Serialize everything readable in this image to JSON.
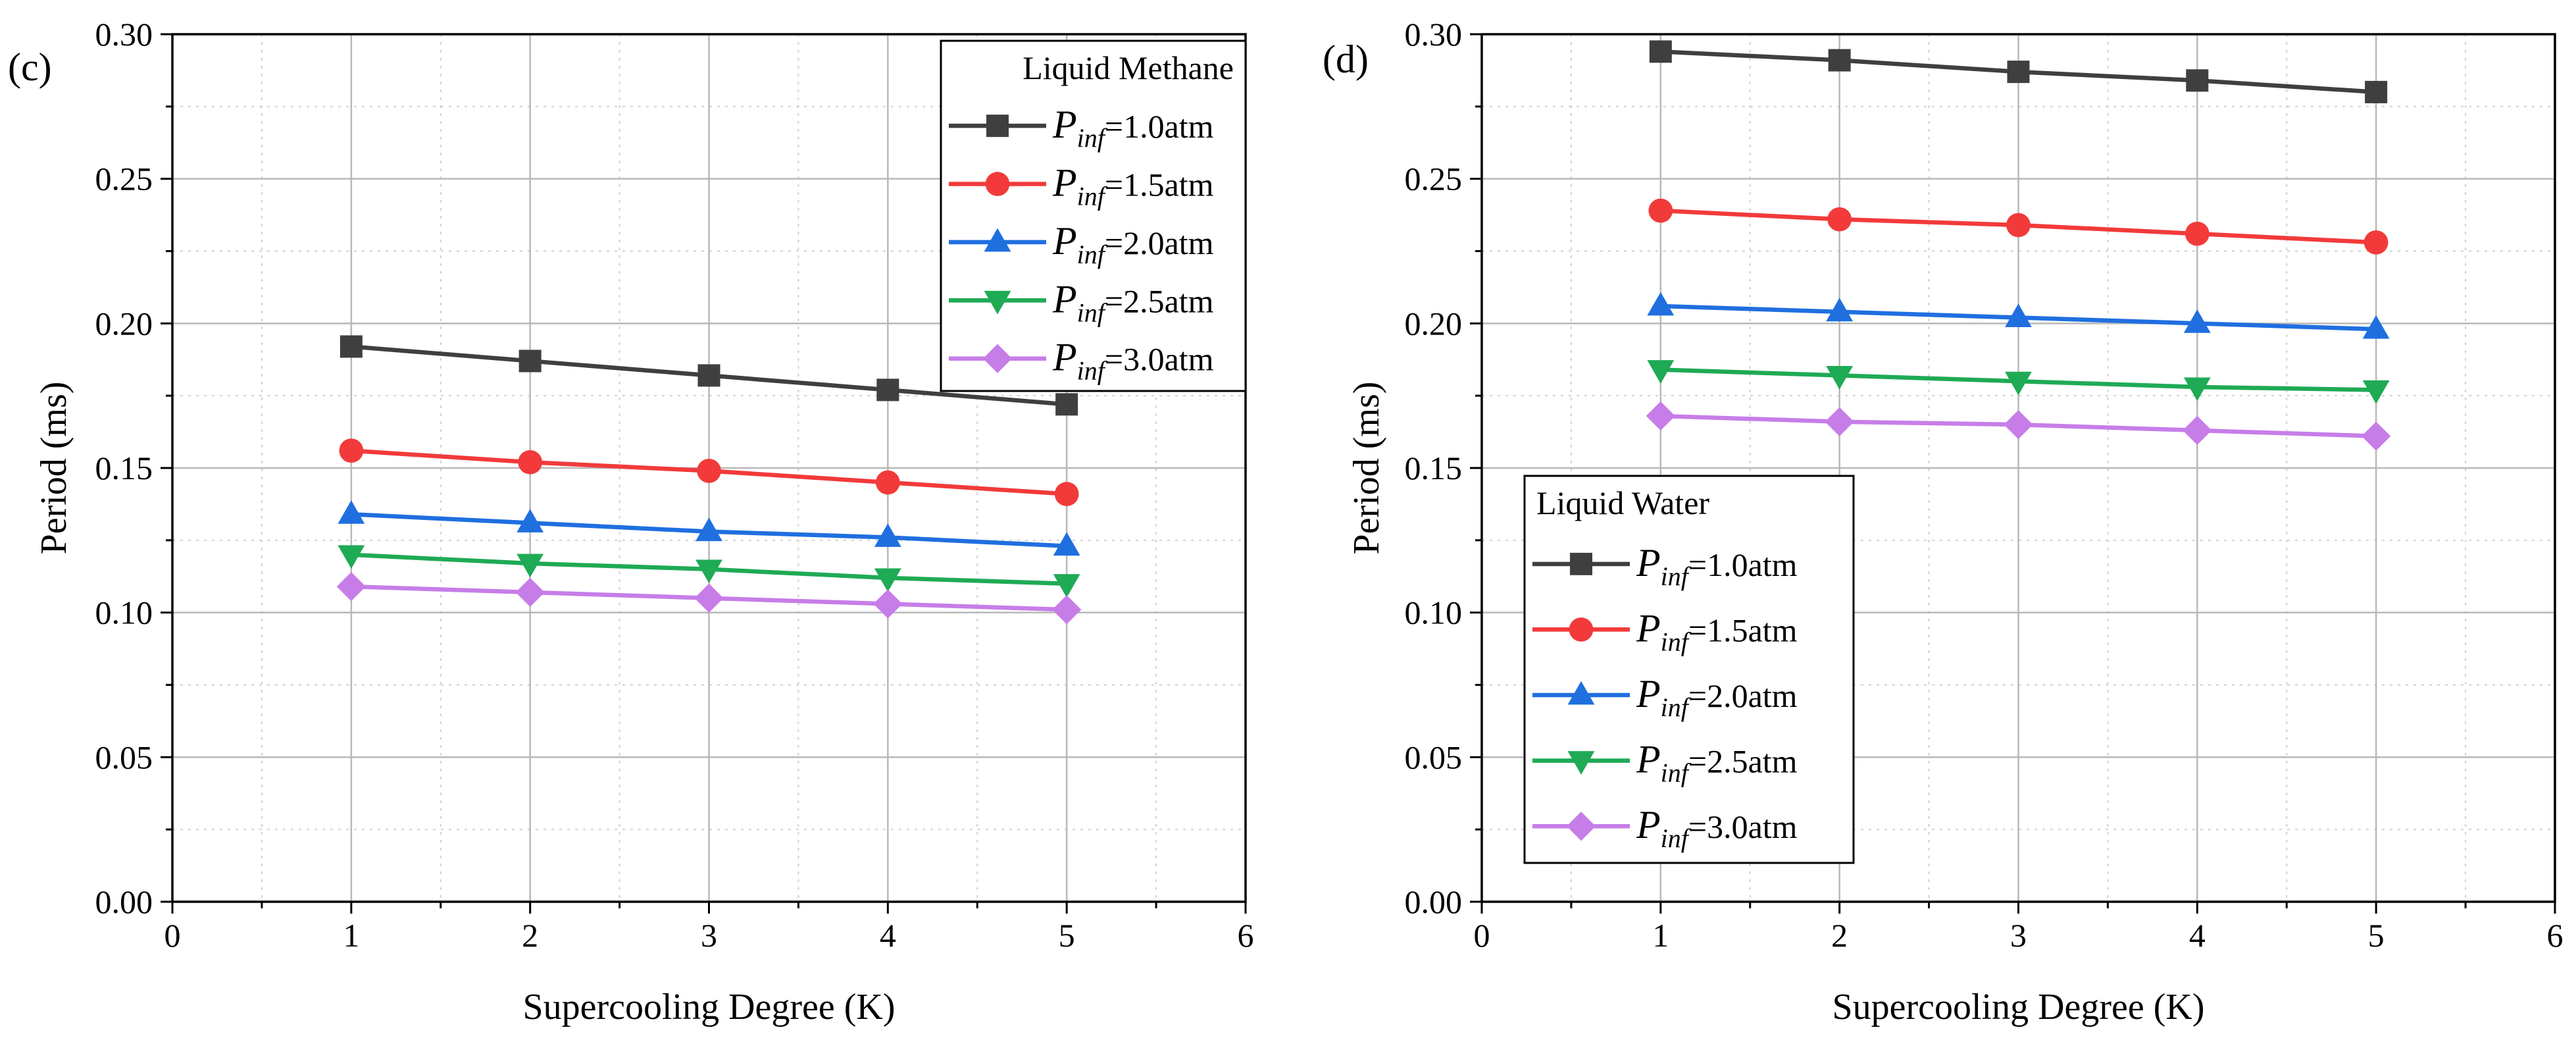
{
  "chart_data": [
    {
      "type": "line",
      "panel_label": "(c)",
      "xlabel": "Supercooling Degree (K)",
      "ylabel": "Period (ms)",
      "xlim": [
        0,
        6
      ],
      "ylim": [
        0,
        0.3
      ],
      "xticks": [
        "0",
        "1",
        "2",
        "3",
        "4",
        "5",
        "6"
      ],
      "yticks": [
        "0.00",
        "0.05",
        "0.10",
        "0.15",
        "0.20",
        "0.25",
        "0.30"
      ],
      "grid": true,
      "legend_title": "Liquid Methane",
      "legend_position": "top-right",
      "x": [
        1,
        2,
        3,
        4,
        5
      ],
      "series": [
        {
          "name": "P_inf=1.0atm",
          "symbol": "P",
          "subscript": "inf",
          "value_text": "=1.0atm",
          "marker": "square",
          "color": "#3f3f3f",
          "values": [
            0.192,
            0.187,
            0.182,
            0.177,
            0.172
          ]
        },
        {
          "name": "P_inf=1.5atm",
          "symbol": "P",
          "subscript": "inf",
          "value_text": "=1.5atm",
          "marker": "circle",
          "color": "#f23a3a",
          "values": [
            0.156,
            0.152,
            0.149,
            0.145,
            0.141
          ]
        },
        {
          "name": "P_inf=2.0atm",
          "symbol": "P",
          "subscript": "inf",
          "value_text": "=2.0atm",
          "marker": "triangle-up",
          "color": "#1f6fdf",
          "values": [
            0.134,
            0.131,
            0.128,
            0.126,
            0.123
          ]
        },
        {
          "name": "P_inf=2.5atm",
          "symbol": "P",
          "subscript": "inf",
          "value_text": "=2.5atm",
          "marker": "triangle-down",
          "color": "#1faa55",
          "values": [
            0.12,
            0.117,
            0.115,
            0.112,
            0.11
          ]
        },
        {
          "name": "P_inf=3.0atm",
          "symbol": "P",
          "subscript": "inf",
          "value_text": "=3.0atm",
          "marker": "diamond",
          "color": "#c77de8",
          "values": [
            0.109,
            0.107,
            0.105,
            0.103,
            0.101
          ]
        }
      ]
    },
    {
      "type": "line",
      "panel_label": "(d)",
      "xlabel": "Supercooling Degree (K)",
      "ylabel": "Period (ms)",
      "xlim": [
        0,
        6
      ],
      "ylim": [
        0,
        0.3
      ],
      "xticks": [
        "0",
        "1",
        "2",
        "3",
        "4",
        "5",
        "6"
      ],
      "yticks": [
        "0.00",
        "0.05",
        "0.10",
        "0.15",
        "0.20",
        "0.25",
        "0.30"
      ],
      "grid": true,
      "legend_title": "Liquid Water",
      "legend_position": "bottom-left",
      "x": [
        1,
        2,
        3,
        4,
        5
      ],
      "series": [
        {
          "name": "P_inf=1.0atm",
          "symbol": "P",
          "subscript": "inf",
          "value_text": "=1.0atm",
          "marker": "square",
          "color": "#3f3f3f",
          "values": [
            0.294,
            0.291,
            0.287,
            0.284,
            0.28
          ]
        },
        {
          "name": "P_inf=1.5atm",
          "symbol": "P",
          "subscript": "inf",
          "value_text": "=1.5atm",
          "marker": "circle",
          "color": "#f23a3a",
          "values": [
            0.239,
            0.236,
            0.234,
            0.231,
            0.228
          ]
        },
        {
          "name": "P_inf=2.0atm",
          "symbol": "P",
          "subscript": "inf",
          "value_text": "=2.0atm",
          "marker": "triangle-up",
          "color": "#1f6fdf",
          "values": [
            0.206,
            0.204,
            0.202,
            0.2,
            0.198
          ]
        },
        {
          "name": "P_inf=2.5atm",
          "symbol": "P",
          "subscript": "inf",
          "value_text": "=2.5atm",
          "marker": "triangle-down",
          "color": "#1faa55",
          "values": [
            0.184,
            0.182,
            0.18,
            0.178,
            0.177
          ]
        },
        {
          "name": "P_inf=3.0atm",
          "symbol": "P",
          "subscript": "inf",
          "value_text": "=3.0atm",
          "marker": "diamond",
          "color": "#c77de8",
          "values": [
            0.168,
            0.166,
            0.165,
            0.163,
            0.161
          ]
        }
      ]
    }
  ]
}
